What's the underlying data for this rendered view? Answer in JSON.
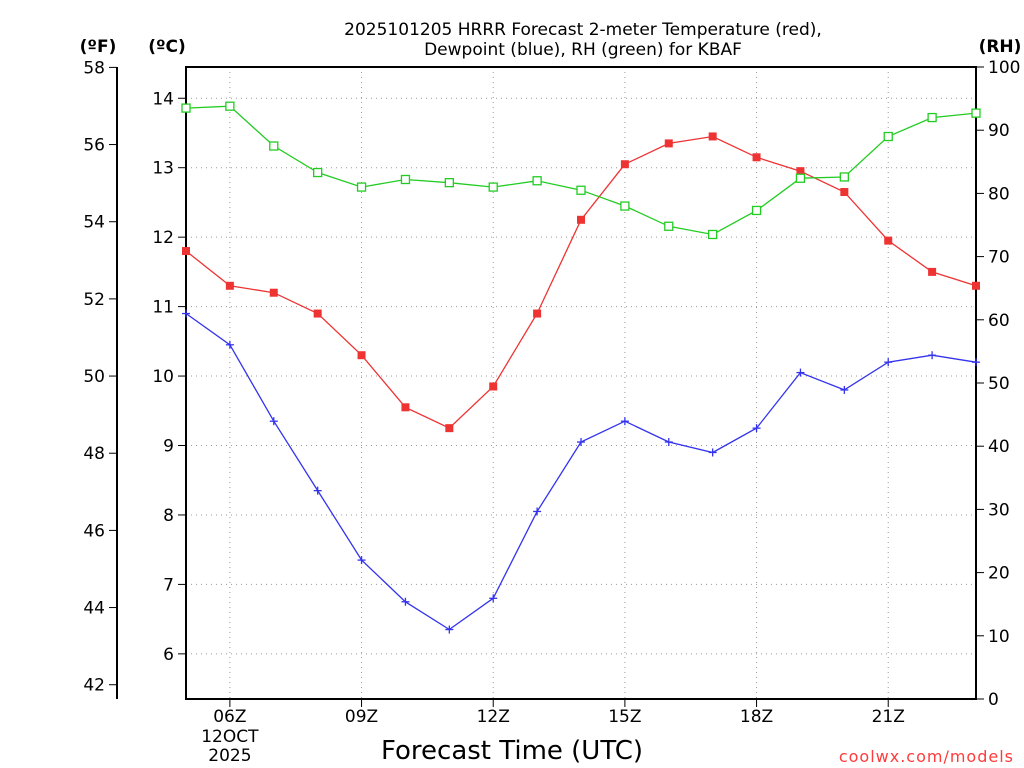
{
  "chart_data": {
    "type": "line",
    "title_line1": "2025101205 HRRR Forecast 2-meter Temperature (red),",
    "title_line2": "Dewpoint (blue), RH (green) for KBAF",
    "xlabel": "Forecast Time (UTC)",
    "credit": "coolwx.com/models",
    "units": {
      "fahrenheit": "(ºF)",
      "celsius": "(ºC)",
      "rh": "(RH)"
    },
    "x_hours": [
      5,
      6,
      7,
      8,
      9,
      10,
      11,
      12,
      13,
      14,
      15,
      16,
      17,
      18,
      19,
      20,
      21,
      22,
      23
    ],
    "x_ticks": [
      {
        "hour": 6,
        "label": "06Z",
        "sub1": "12OCT",
        "sub2": "2025"
      },
      {
        "hour": 9,
        "label": "09Z"
      },
      {
        "hour": 12,
        "label": "12Z"
      },
      {
        "hour": 15,
        "label": "15Z"
      },
      {
        "hour": 18,
        "label": "18Z"
      },
      {
        "hour": 21,
        "label": "21Z"
      }
    ],
    "xlim": [
      5,
      23
    ],
    "celsius_axis": {
      "ylim": [
        5.35,
        14.45
      ],
      "ticks": [
        6,
        7,
        8,
        9,
        10,
        11,
        12,
        13,
        14
      ]
    },
    "fahrenheit_axis": {
      "ylim": [
        41.63,
        58.01
      ],
      "ticks": [
        42,
        44,
        46,
        48,
        50,
        52,
        54,
        56,
        58
      ]
    },
    "rh_axis": {
      "ylim": [
        0,
        100
      ],
      "ticks": [
        0,
        10,
        20,
        30,
        40,
        50,
        60,
        70,
        80,
        90,
        100
      ]
    },
    "series": [
      {
        "name": "Temperature",
        "color": "#ee3333",
        "axis": "celsius",
        "marker": "square-filled",
        "values": [
          11.8,
          11.3,
          11.2,
          10.9,
          10.3,
          9.55,
          9.25,
          9.85,
          10.9,
          12.25,
          13.05,
          13.35,
          13.45,
          13.15,
          12.95,
          12.65,
          11.95,
          11.5,
          11.3
        ]
      },
      {
        "name": "Dewpoint",
        "color": "#3333ee",
        "axis": "celsius",
        "marker": "plus",
        "values": [
          10.9,
          10.45,
          9.35,
          8.35,
          7.35,
          6.75,
          6.35,
          6.8,
          8.05,
          9.05,
          9.35,
          9.05,
          8.9,
          9.25,
          10.05,
          9.8,
          10.2,
          10.3,
          10.2
        ]
      },
      {
        "name": "RH",
        "color": "#22cc22",
        "axis": "rh",
        "marker": "square-open",
        "values": [
          93.5,
          93.8,
          87.5,
          83.3,
          81.0,
          82.2,
          81.7,
          81.0,
          82.0,
          80.5,
          78.0,
          74.8,
          73.5,
          77.3,
          82.4,
          82.6,
          89.0,
          92.0,
          92.7
        ]
      }
    ]
  }
}
